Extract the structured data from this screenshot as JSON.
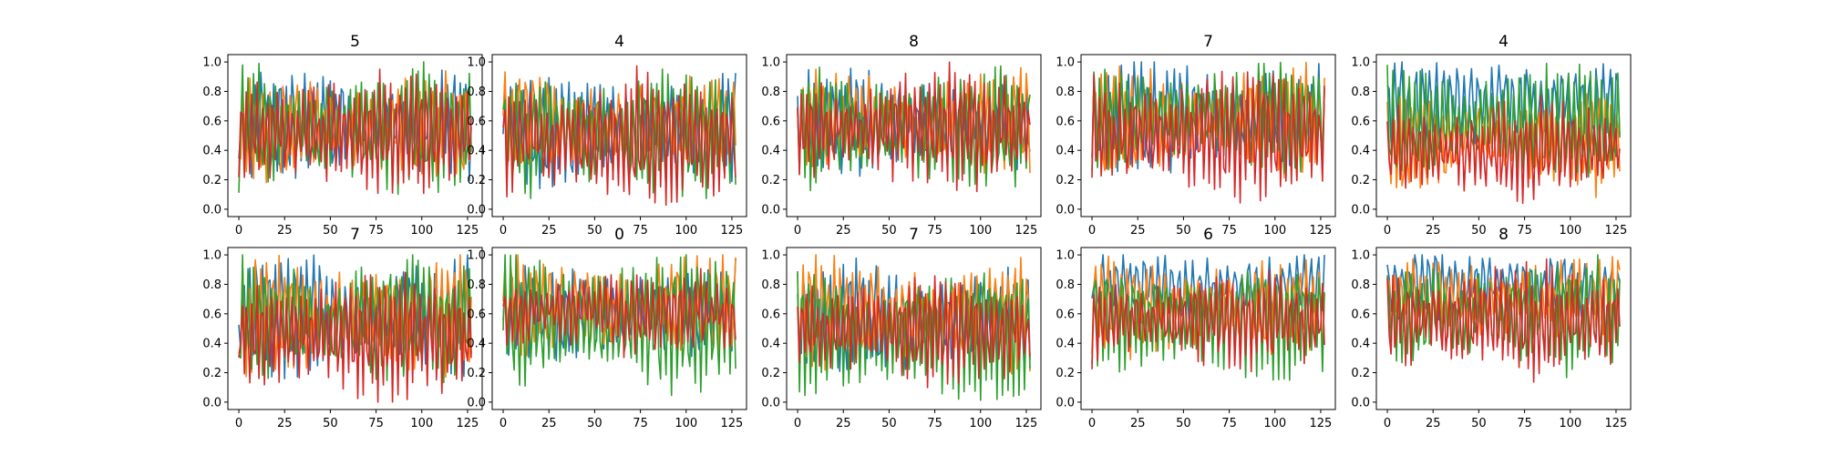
{
  "chart_data": {
    "type": "line",
    "layout": "grid 2 rows x 5 columns of small-multiple line plots",
    "series_colors": [
      "#1f77b4",
      "#ff7f0e",
      "#2ca02c",
      "#d62728"
    ],
    "shared_axes": {
      "xlim": [
        -6,
        133
      ],
      "ylim": [
        -0.05,
        1.05
      ],
      "xticks": [
        0,
        25,
        50,
        75,
        100,
        125
      ],
      "yticks": [
        "0.0",
        "0.2",
        "0.4",
        "0.6",
        "0.8",
        "1.0"
      ],
      "grid": false
    },
    "panels": [
      {
        "title": "5",
        "period": [
          3.4,
          3.7,
          3.1,
          2.8
        ],
        "mid": [
          0.58,
          0.55,
          0.55,
          0.52
        ],
        "amp": [
          0.34,
          0.33,
          0.42,
          0.38
        ]
      },
      {
        "title": "4",
        "period": [
          3.5,
          3.9,
          3.2,
          2.9
        ],
        "mid": [
          0.55,
          0.58,
          0.5,
          0.48
        ],
        "amp": [
          0.33,
          0.3,
          0.4,
          0.42
        ]
      },
      {
        "title": "8",
        "period": [
          3.3,
          3.6,
          3.1,
          2.7
        ],
        "mid": [
          0.6,
          0.6,
          0.55,
          0.55
        ],
        "amp": [
          0.3,
          0.3,
          0.4,
          0.38
        ]
      },
      {
        "title": "7",
        "period": [
          3.6,
          3.4,
          3.0,
          2.8
        ],
        "mid": [
          0.62,
          0.6,
          0.62,
          0.5
        ],
        "amp": [
          0.34,
          0.35,
          0.34,
          0.42
        ]
      },
      {
        "title": "4",
        "period": [
          3.8,
          3.3,
          3.0,
          2.9
        ],
        "mid": [
          0.72,
          0.45,
          0.55,
          0.4
        ],
        "amp": [
          0.25,
          0.3,
          0.38,
          0.3
        ]
      },
      {
        "title": "7",
        "period": [
          3.5,
          3.3,
          3.1,
          2.7
        ],
        "mid": [
          0.6,
          0.58,
          0.55,
          0.45
        ],
        "amp": [
          0.38,
          0.38,
          0.4,
          0.4
        ]
      },
      {
        "title": "0",
        "period": [
          3.7,
          3.5,
          3.2,
          2.9
        ],
        "mid": [
          0.6,
          0.65,
          0.55,
          0.62
        ],
        "amp": [
          0.3,
          0.3,
          0.45,
          0.25
        ]
      },
      {
        "title": "7",
        "period": [
          3.6,
          3.4,
          3.0,
          2.8
        ],
        "mid": [
          0.55,
          0.6,
          0.5,
          0.5
        ],
        "amp": [
          0.35,
          0.35,
          0.45,
          0.35
        ]
      },
      {
        "title": "6",
        "period": [
          3.8,
          3.5,
          3.0,
          2.9
        ],
        "mid": [
          0.78,
          0.65,
          0.6,
          0.55
        ],
        "amp": [
          0.2,
          0.3,
          0.38,
          0.3
        ]
      },
      {
        "title": "8",
        "period": [
          3.7,
          3.5,
          3.1,
          2.8
        ],
        "mid": [
          0.8,
          0.7,
          0.6,
          0.55
        ],
        "amp": [
          0.18,
          0.25,
          0.35,
          0.35
        ]
      }
    ]
  }
}
